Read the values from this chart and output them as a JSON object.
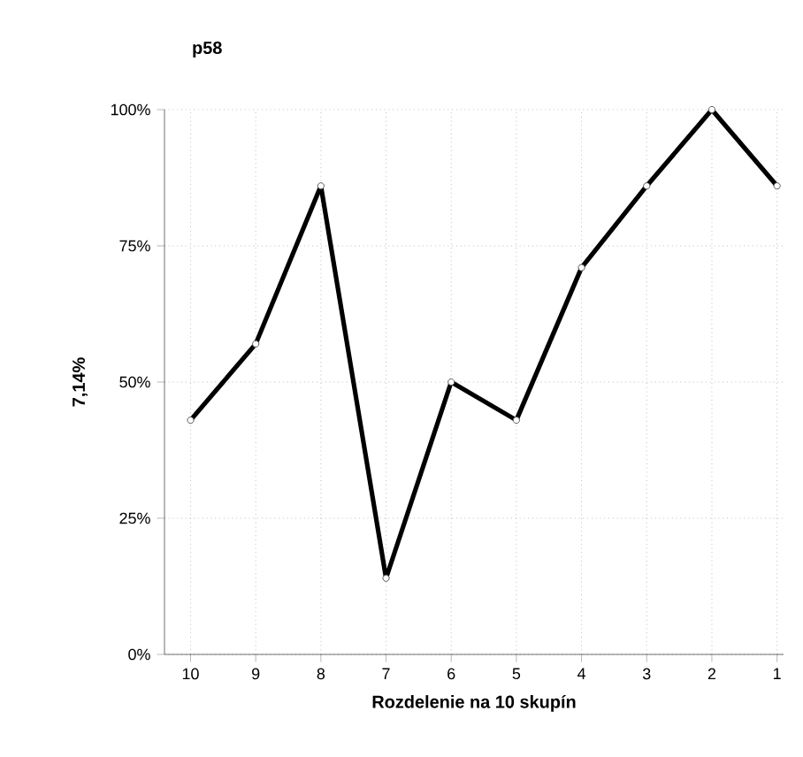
{
  "chart_data": {
    "type": "line",
    "title": "p58",
    "xlabel": "Rozdelenie na 10 skupín",
    "ylabel": "7,14%",
    "categories": [
      "10",
      "9",
      "8",
      "7",
      "6",
      "5",
      "4",
      "3",
      "2",
      "1"
    ],
    "series": [
      {
        "color": "#000000",
        "values": [
          43,
          57,
          86,
          14,
          50,
          43,
          71,
          86,
          100,
          86
        ]
      }
    ],
    "ylim": [
      0,
      100
    ],
    "yticks": [
      {
        "value": 0,
        "label": "0%"
      },
      {
        "value": 25,
        "label": "25%"
      },
      {
        "value": 50,
        "label": "50%"
      },
      {
        "value": 75,
        "label": "75%"
      },
      {
        "value": 100,
        "label": "100%"
      }
    ],
    "grid": true,
    "marker": "circle",
    "line_style": "solid"
  }
}
